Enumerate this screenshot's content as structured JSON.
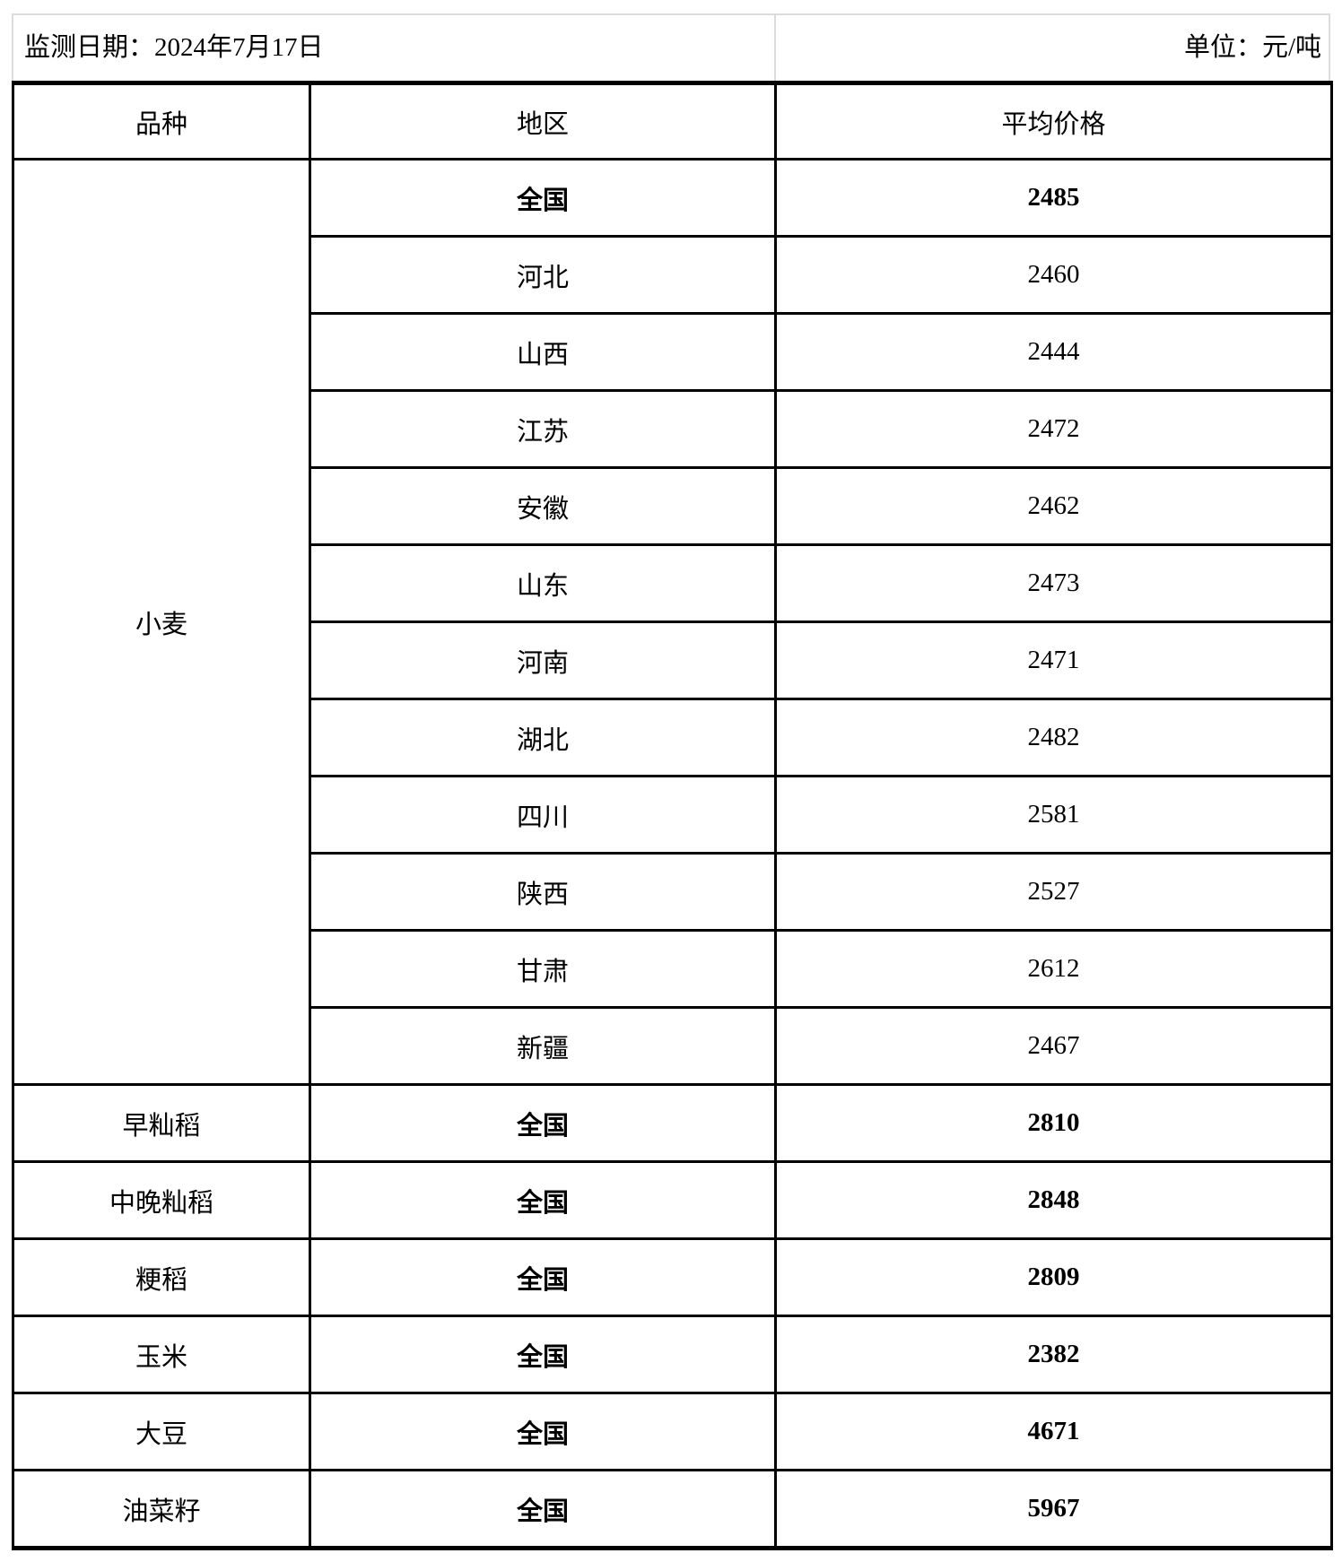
{
  "meta": {
    "date_label": "监测日期：2024年7月17日",
    "unit_label": "单位：元/吨"
  },
  "colors": {
    "border_black": "#000000",
    "gridline_gray": "#dcdcdc",
    "background": "#ffffff",
    "text": "#000000"
  },
  "table": {
    "headers": {
      "variety": "品种",
      "region": "地区",
      "price": "平均价格"
    },
    "groups": [
      {
        "variety": "小麦",
        "rows": [
          {
            "region": "全国",
            "price": "2485",
            "bold": true
          },
          {
            "region": "河北",
            "price": "2460",
            "bold": false
          },
          {
            "region": "山西",
            "price": "2444",
            "bold": false
          },
          {
            "region": "江苏",
            "price": "2472",
            "bold": false
          },
          {
            "region": "安徽",
            "price": "2462",
            "bold": false
          },
          {
            "region": "山东",
            "price": "2473",
            "bold": false
          },
          {
            "region": "河南",
            "price": "2471",
            "bold": false
          },
          {
            "region": "湖北",
            "price": "2482",
            "bold": false
          },
          {
            "region": "四川",
            "price": "2581",
            "bold": false
          },
          {
            "region": "陕西",
            "price": "2527",
            "bold": false
          },
          {
            "region": "甘肃",
            "price": "2612",
            "bold": false
          },
          {
            "region": "新疆",
            "price": "2467",
            "bold": false
          }
        ]
      },
      {
        "variety": "早籼稻",
        "rows": [
          {
            "region": "全国",
            "price": "2810",
            "bold": true
          }
        ]
      },
      {
        "variety": "中晚籼稻",
        "rows": [
          {
            "region": "全国",
            "price": "2848",
            "bold": true
          }
        ]
      },
      {
        "variety": "粳稻",
        "rows": [
          {
            "region": "全国",
            "price": "2809",
            "bold": true
          }
        ]
      },
      {
        "variety": "玉米",
        "rows": [
          {
            "region": "全国",
            "price": "2382",
            "bold": true
          }
        ]
      },
      {
        "variety": "大豆",
        "rows": [
          {
            "region": "全国",
            "price": "4671",
            "bold": true
          }
        ]
      },
      {
        "variety": "油菜籽",
        "rows": [
          {
            "region": "全国",
            "price": "5967",
            "bold": true
          }
        ]
      }
    ]
  }
}
